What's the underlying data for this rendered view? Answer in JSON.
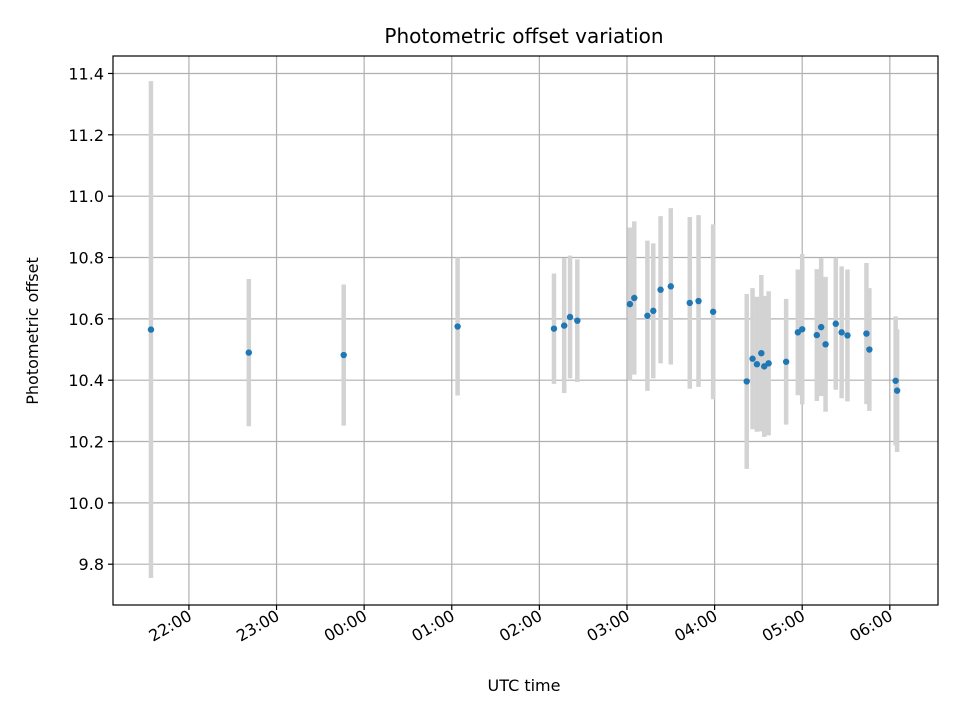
{
  "chart_data": {
    "type": "scatter",
    "title": "Photometric offset variation",
    "xlabel": "UTC time",
    "ylabel": "Photometric offset",
    "grid": true,
    "x_ticks": [
      "22:00",
      "23:00",
      "00:00",
      "01:00",
      "02:00",
      "03:00",
      "04:00",
      "05:00",
      "06:00"
    ],
    "y_ticks": [
      9.8,
      10.0,
      10.2,
      10.4,
      10.6,
      10.8,
      11.0,
      11.2,
      11.4
    ],
    "y_tick_labels": [
      "9.8",
      "10.0",
      "10.2",
      "10.4",
      "10.6",
      "10.8",
      "11.0",
      "11.2",
      "11.4"
    ],
    "ylim": [
      9.667,
      11.457
    ],
    "xlim": [
      "21:08",
      "06:33"
    ],
    "colors": {
      "points": "#1f77b4",
      "errorbars": "#d3d3d3",
      "grid": "#b0b0b0"
    },
    "series": [
      {
        "points": [
          {
            "t": "21:34",
            "y": 10.565,
            "err": 0.81
          },
          {
            "t": "22:41",
            "y": 10.49,
            "err": 0.24
          },
          {
            "t": "23:46",
            "y": 10.482,
            "err": 0.23
          },
          {
            "t": "01:04",
            "y": 10.575,
            "err": 0.225
          },
          {
            "t": "02:10",
            "y": 10.568,
            "err": 0.18
          },
          {
            "t": "02:17",
            "y": 10.578,
            "err": 0.22
          },
          {
            "t": "02:21",
            "y": 10.606,
            "err": 0.2
          },
          {
            "t": "02:26",
            "y": 10.594,
            "err": 0.2
          },
          {
            "t": "03:02",
            "y": 10.648,
            "err": 0.25
          },
          {
            "t": "03:05",
            "y": 10.668,
            "err": 0.25
          },
          {
            "t": "03:14",
            "y": 10.61,
            "err": 0.245
          },
          {
            "t": "03:18",
            "y": 10.626,
            "err": 0.22
          },
          {
            "t": "03:23",
            "y": 10.695,
            "err": 0.24
          },
          {
            "t": "03:30",
            "y": 10.706,
            "err": 0.255
          },
          {
            "t": "03:43",
            "y": 10.652,
            "err": 0.28
          },
          {
            "t": "03:49",
            "y": 10.658,
            "err": 0.28
          },
          {
            "t": "03:59",
            "y": 10.623,
            "err": 0.285
          },
          {
            "t": "04:22",
            "y": 10.396,
            "err": 0.285
          },
          {
            "t": "04:26",
            "y": 10.47,
            "err": 0.23
          },
          {
            "t": "04:29",
            "y": 10.452,
            "err": 0.22
          },
          {
            "t": "04:32",
            "y": 10.488,
            "err": 0.255
          },
          {
            "t": "04:34",
            "y": 10.445,
            "err": 0.23
          },
          {
            "t": "04:37",
            "y": 10.455,
            "err": 0.235
          },
          {
            "t": "04:49",
            "y": 10.46,
            "err": 0.205
          },
          {
            "t": "04:57",
            "y": 10.556,
            "err": 0.205
          },
          {
            "t": "05:00",
            "y": 10.566,
            "err": 0.245
          },
          {
            "t": "05:10",
            "y": 10.547,
            "err": 0.215
          },
          {
            "t": "05:13",
            "y": 10.573,
            "err": 0.225
          },
          {
            "t": "05:16",
            "y": 10.517,
            "err": 0.22
          },
          {
            "t": "05:23",
            "y": 10.584,
            "err": 0.215
          },
          {
            "t": "05:27",
            "y": 10.556,
            "err": 0.215
          },
          {
            "t": "05:31",
            "y": 10.546,
            "err": 0.215
          },
          {
            "t": "05:44",
            "y": 10.552,
            "err": 0.23
          },
          {
            "t": "05:46",
            "y": 10.5,
            "err": 0.2
          },
          {
            "t": "06:04",
            "y": 10.398,
            "err": 0.21
          },
          {
            "t": "06:05",
            "y": 10.366,
            "err": 0.2
          }
        ]
      }
    ]
  }
}
